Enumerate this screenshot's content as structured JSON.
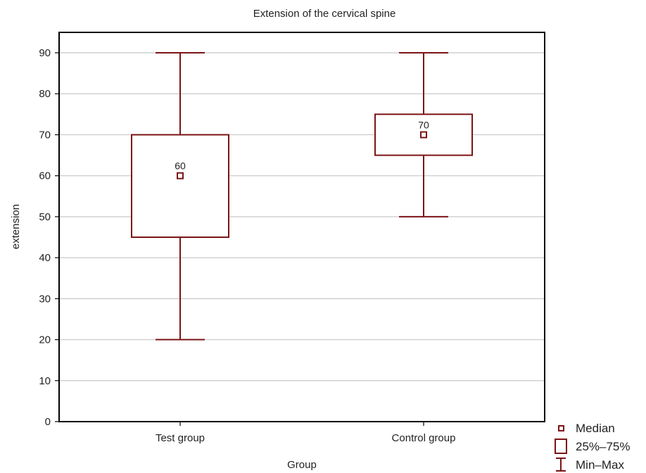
{
  "chart_data": {
    "type": "boxplot",
    "title": "Extension of the cervical spine",
    "xlabel": "Group",
    "ylabel": "extension",
    "ylim": [
      0,
      95
    ],
    "yticks": [
      0,
      10,
      20,
      30,
      40,
      50,
      60,
      70,
      80,
      90
    ],
    "grid": true,
    "categories": [
      "Test group",
      "Control group"
    ],
    "boxes": [
      {
        "category": "Test group",
        "min": 20,
        "q1": 45,
        "median": 60,
        "q3": 70,
        "max": 90,
        "median_label": "60"
      },
      {
        "category": "Control group",
        "min": 50,
        "q1": 65,
        "median": 70,
        "q3": 75,
        "max": 90,
        "median_label": "70"
      }
    ],
    "legend": {
      "position": "bottom-right",
      "entries": [
        {
          "symbol": "median-square",
          "label": "Median"
        },
        {
          "symbol": "box",
          "label": "25%–75%"
        },
        {
          "symbol": "whisker",
          "label": "Min–Max"
        }
      ]
    },
    "colors": {
      "series": "#7b1416",
      "grid": "#c8c8c8",
      "frame": "#000000"
    }
  }
}
